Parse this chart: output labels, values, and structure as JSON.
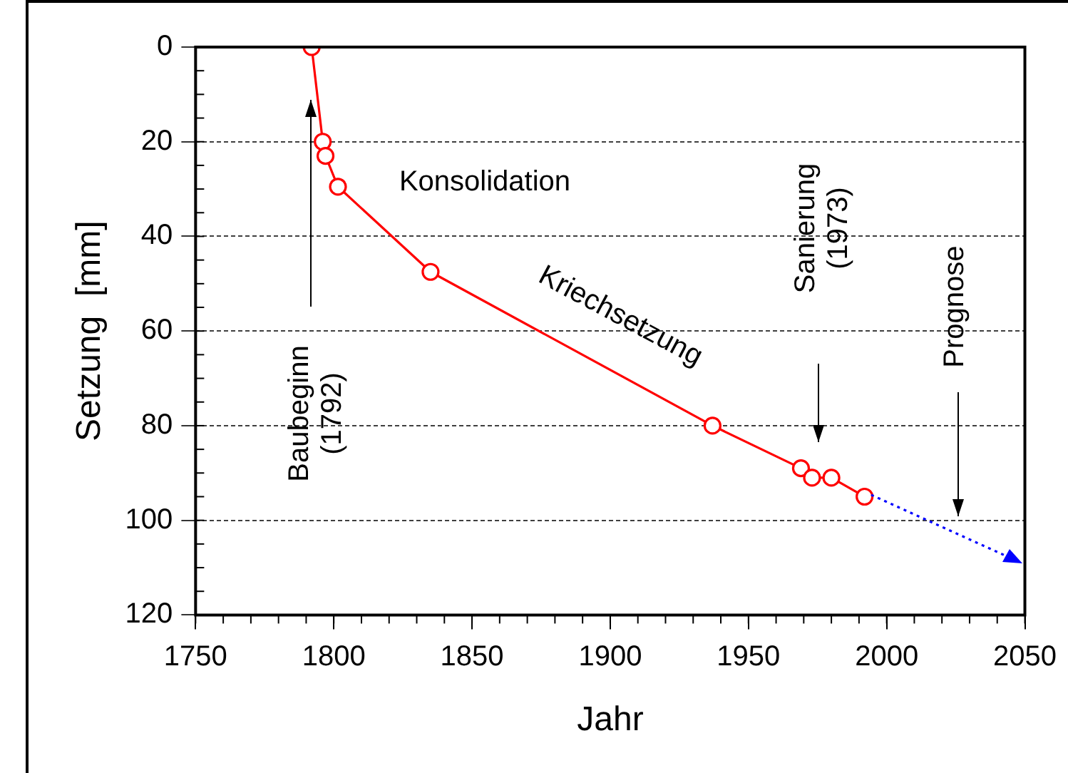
{
  "chart_data": {
    "type": "line",
    "xlabel": "Jahr",
    "ylabel": "Setzung  [mm]",
    "xlim": [
      1750,
      2050
    ],
    "xticks": [
      1750,
      1800,
      1850,
      1900,
      1950,
      2000,
      2050
    ],
    "ylim": [
      120,
      0
    ],
    "yticks": [
      0,
      20,
      40,
      60,
      80,
      100,
      120
    ],
    "grid": "y",
    "legend": false,
    "series": [
      {
        "color": "#ff0000",
        "marker": "circle",
        "line_style": "solid",
        "x": [
          1792,
          1796,
          1797,
          1801.5,
          1835,
          1937,
          1969,
          1973,
          1980,
          1992
        ],
        "values": [
          0,
          20,
          23,
          29.5,
          47.5,
          80,
          89,
          91,
          91,
          95
        ]
      }
    ],
    "annotations": [
      "Baubeginn (1792)",
      "Konsolidation",
      "Kriechsetzung",
      "Sanierung (1973)",
      "Prognose"
    ]
  }
}
